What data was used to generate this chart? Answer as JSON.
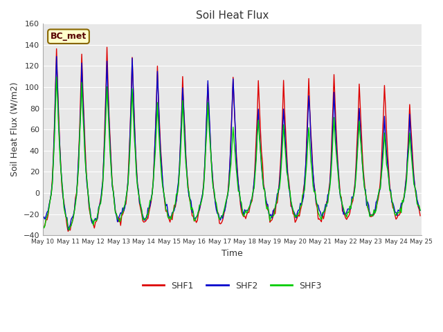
{
  "title": "Soil Heat Flux",
  "xlabel": "Time",
  "ylabel": "Soil Heat Flux (W/m2)",
  "ylim": [
    -40,
    160
  ],
  "xlim": [
    0,
    360
  ],
  "fig_bg_color": "#ffffff",
  "plot_bg_color": "#e8e8e8",
  "line_colors": {
    "SHF1": "#dd0000",
    "SHF2": "#0000cc",
    "SHF3": "#00cc00"
  },
  "line_widths": {
    "SHF1": 1.0,
    "SHF2": 1.0,
    "SHF3": 1.0
  },
  "legend_label": "BC_met",
  "legend_bg": "#ffffcc",
  "legend_edge": "#886600",
  "yticks": [
    -40,
    -20,
    0,
    20,
    40,
    60,
    80,
    100,
    120,
    140,
    160
  ],
  "xtick_labels": [
    "May 10",
    "May 11",
    "May 12",
    "May 13",
    "May 14",
    "May 15",
    "May 16",
    "May 17",
    "May 18",
    "May 19",
    "May 20",
    "May 21",
    "May 22",
    "May 23",
    "May 24",
    "May 25"
  ],
  "xtick_positions": [
    0,
    24,
    48,
    72,
    96,
    120,
    144,
    168,
    192,
    216,
    240,
    264,
    288,
    312,
    336,
    360
  ],
  "n_hours": 360,
  "peaks_SHF1": [
    140,
    135,
    138,
    129,
    120,
    109,
    102,
    111,
    108,
    105,
    106,
    113,
    104,
    104,
    84,
    84
  ],
  "peaks_SHF2": [
    127,
    120,
    121,
    126,
    116,
    101,
    108,
    110,
    80,
    81,
    94,
    95,
    81,
    71,
    71,
    70
  ],
  "peaks_SHF3": [
    113,
    104,
    103,
    99,
    86,
    85,
    85,
    63,
    72,
    64,
    63,
    70,
    69,
    55,
    56,
    55
  ],
  "troughs_SHF1": [
    -33,
    -35,
    -30,
    -27,
    -28,
    -26,
    -27,
    -28,
    -22,
    -26,
    -26,
    -25,
    -24,
    -24,
    -23,
    -22
  ],
  "troughs_SHF2": [
    -26,
    -33,
    -27,
    -23,
    -24,
    -22,
    -23,
    -24,
    -18,
    -22,
    -22,
    -21,
    -20,
    -20,
    -19,
    -18
  ],
  "troughs_SHF3": [
    -30,
    -34,
    -29,
    -25,
    -26,
    -24,
    -25,
    -26,
    -20,
    -24,
    -24,
    -23,
    -22,
    -22,
    -21,
    -20
  ]
}
